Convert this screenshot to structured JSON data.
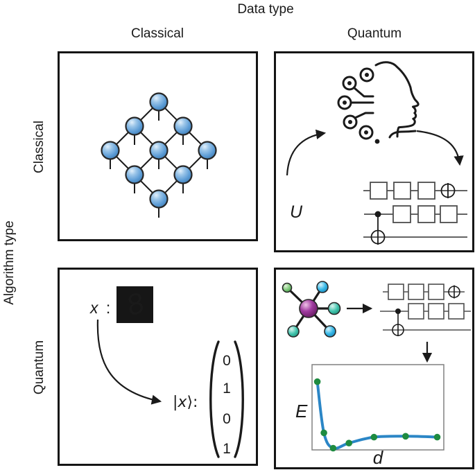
{
  "header": {
    "title": "Data type"
  },
  "col_axis": {
    "labels": {
      "classical": "Classical",
      "quantum": "Quantum"
    }
  },
  "row_axis": {
    "title": "Algorithm type",
    "labels": {
      "classical": "Classical",
      "quantum": "Quantum"
    }
  },
  "panel_classical_classical": {
    "icon": "tensor-network-icon"
  },
  "panel_quantum_classical": {
    "unitary_label": "U",
    "icons": [
      "ai-head-icon",
      "curved-arrow-icon",
      "quantum-circuit-icon"
    ]
  },
  "panel_classical_quantum": {
    "input_label": "x",
    "input_colon": ":",
    "digit": "8",
    "digit_icon": "mnist-digit-8-icon",
    "ket_bar": "|",
    "ket_x": "x",
    "ket_close": "⟩:",
    "vector": [
      "0",
      "1",
      "0",
      "1"
    ]
  },
  "panel_quantum_quantum": {
    "icons": [
      "molecule-icon",
      "right-arrow-icon",
      "quantum-circuit-icon",
      "down-arrow-icon",
      "energy-plot"
    ]
  },
  "chart_data": {
    "type": "line",
    "title": "",
    "xlabel": "d",
    "ylabel": "E",
    "tick_labels": [],
    "grid": false,
    "frame": true,
    "points_norm": [
      {
        "x": 0.04,
        "y": 0.8
      },
      {
        "x": 0.09,
        "y": 0.2
      },
      {
        "x": 0.16,
        "y": 0.02
      },
      {
        "x": 0.28,
        "y": 0.08
      },
      {
        "x": 0.47,
        "y": 0.15
      },
      {
        "x": 0.71,
        "y": 0.16
      },
      {
        "x": 0.95,
        "y": 0.15
      }
    ],
    "curve_color": "#2b86c6",
    "point_color": "#1e8b40"
  },
  "colors": {
    "ink": "#1a1a1a",
    "circuit_gray": "#4d4d4d",
    "node_blue": "#5b9bd5",
    "molecule_purple": "#8e2f8e",
    "molecule_cyan": "#35b7e6",
    "molecule_teal": "#41c4ae",
    "molecule_green": "#7ec97a",
    "plot_frame_gray": "#808080",
    "curve_blue": "#2b86c6",
    "point_green": "#1e8b40"
  }
}
